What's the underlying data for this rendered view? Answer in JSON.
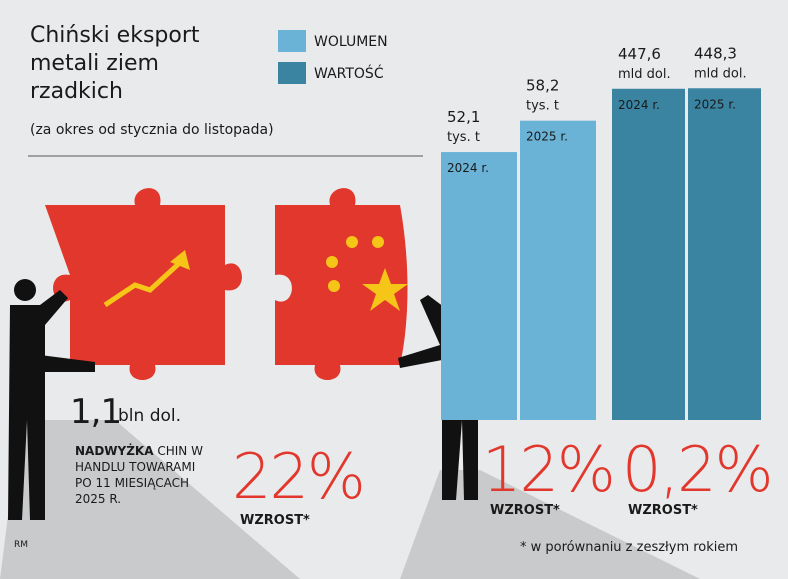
{
  "title": "Chiński eksport metali ziem rzadkich",
  "subtitle": "(za okres od stycznia do listopada)",
  "chart_data": [
    {
      "type": "bar",
      "name": "WOLUMEN",
      "color": "#6bb3d6",
      "categories": [
        "2024 r.",
        "2025 r."
      ],
      "values": [
        52.1,
        58.2
      ],
      "value_labels": [
        "52,1",
        "58,2"
      ],
      "unit": "tys. t",
      "ylim": [
        0,
        70
      ]
    },
    {
      "type": "bar",
      "name": "WARTOŚĆ",
      "color": "#3a84a2",
      "categories": [
        "2024 r.",
        "2025 r."
      ],
      "values": [
        447.6,
        448.3
      ],
      "value_labels": [
        "447,6",
        "448,3"
      ],
      "unit": "mld dol.",
      "ylim": [
        0,
        500
      ]
    }
  ],
  "surplus": {
    "value": "1,1",
    "unit": "bln dol.",
    "highlight": "NADWYŻKA",
    "text": "CHIN W HANDLU TOWARAMI PO 11 MIESIĄCACH 2025 R.",
    "growth": "22%",
    "growth_label": "WZROST*"
  },
  "growth": [
    {
      "value": "12%",
      "label": "WZROST*"
    },
    {
      "value": "0,2%",
      "label": "WZROST*"
    }
  ],
  "footnote": "* w porównaniu z zeszłym rokiem",
  "credit": "RM"
}
